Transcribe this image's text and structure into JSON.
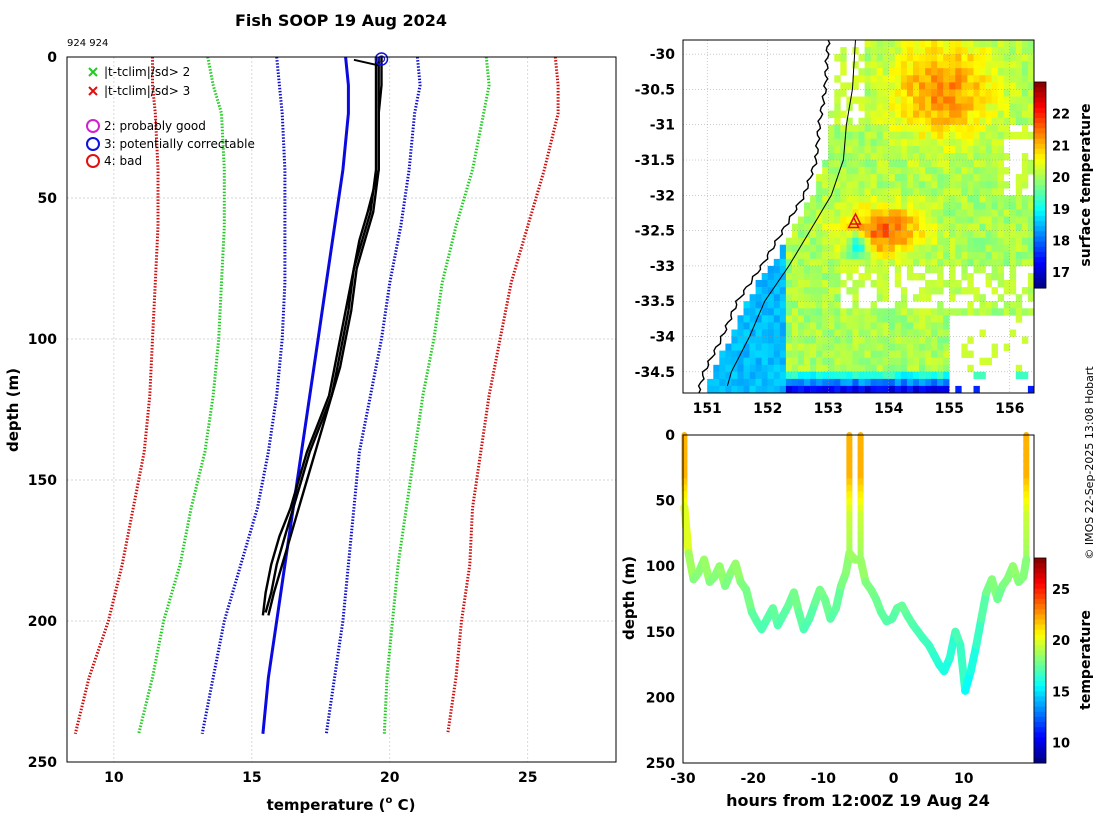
{
  "chart_data": [
    {
      "type": "line",
      "title": "Fish SOOP 19 Aug 2024",
      "id_label": "924 924",
      "xlabel": "temperature (",
      "xlabel_sup": "o",
      "xlabel_unit": " C)",
      "ylabel": "depth (m)",
      "xlim": [
        8.3,
        28.2
      ],
      "ylim": [
        250,
        0
      ],
      "xticks": [
        10,
        15,
        20,
        25
      ],
      "yticks": [
        0,
        50,
        100,
        150,
        200,
        250
      ],
      "legend": [
        {
          "marker": "x",
          "color": "#22cc22",
          "label": "|t-tclim|/sd> 2"
        },
        {
          "marker": "x",
          "color": "#e01010",
          "label": "|t-tclim|/sd> 3"
        },
        {
          "marker": "o",
          "color": "#d020d0",
          "label": "2: probably good"
        },
        {
          "marker": "o",
          "color": "#1010e0",
          "label": "3: potentially correctable"
        },
        {
          "marker": "o",
          "color": "#e01010",
          "label": "4: bad"
        }
      ],
      "series": [
        {
          "name": "clim -3sd",
          "style": "dotted",
          "color": "#d01010",
          "depth": [
            0,
            10,
            20,
            40,
            60,
            80,
            100,
            120,
            140,
            160,
            180,
            200,
            220,
            240
          ],
          "temp": [
            11.4,
            11.4,
            11.5,
            11.6,
            11.6,
            11.5,
            11.4,
            11.3,
            11.1,
            10.7,
            10.3,
            9.8,
            9.1,
            8.6
          ]
        },
        {
          "name": "clim -2sd",
          "style": "dotted",
          "color": "#22cc22",
          "depth": [
            0,
            10,
            20,
            40,
            60,
            80,
            100,
            120,
            140,
            160,
            180,
            200,
            220,
            240
          ],
          "temp": [
            13.4,
            13.6,
            13.9,
            14.0,
            14.0,
            13.9,
            13.8,
            13.6,
            13.3,
            12.8,
            12.4,
            11.8,
            11.4,
            10.9
          ]
        },
        {
          "name": "clim -1sd",
          "style": "dotted",
          "color": "#1010d0",
          "depth": [
            0,
            10,
            20,
            40,
            60,
            80,
            100,
            120,
            140,
            160,
            180,
            200,
            220,
            240
          ],
          "temp": [
            15.9,
            16.0,
            16.1,
            16.2,
            16.2,
            16.2,
            16.1,
            15.9,
            15.6,
            15.2,
            14.6,
            14.0,
            13.6,
            13.2
          ]
        },
        {
          "name": "climatology mean",
          "style": "solid",
          "color": "#0a0ae0",
          "depth": [
            0,
            10,
            20,
            40,
            60,
            80,
            100,
            120,
            140,
            160,
            180,
            200,
            220,
            240
          ],
          "temp": [
            18.4,
            18.5,
            18.5,
            18.3,
            18.0,
            17.7,
            17.4,
            17.1,
            16.8,
            16.5,
            16.2,
            15.9,
            15.6,
            15.4
          ]
        },
        {
          "name": "clim +1sd",
          "style": "dotted",
          "color": "#1010d0",
          "depth": [
            0,
            10,
            20,
            40,
            60,
            80,
            100,
            120,
            140,
            160,
            180,
            200,
            220,
            240
          ],
          "temp": [
            21.0,
            21.1,
            20.9,
            20.7,
            20.4,
            20.0,
            19.7,
            19.3,
            18.9,
            18.7,
            18.5,
            18.3,
            18.0,
            17.7
          ]
        },
        {
          "name": "clim +2sd",
          "style": "dotted",
          "color": "#22cc22",
          "depth": [
            0,
            10,
            20,
            40,
            60,
            80,
            100,
            120,
            140,
            160,
            180,
            200,
            220,
            240
          ],
          "temp": [
            23.5,
            23.6,
            23.4,
            23.0,
            22.4,
            21.9,
            21.6,
            21.2,
            20.9,
            20.6,
            20.3,
            20.1,
            19.9,
            19.8
          ]
        },
        {
          "name": "clim +3sd",
          "style": "dotted",
          "color": "#d01010",
          "depth": [
            0,
            10,
            20,
            40,
            60,
            80,
            100,
            120,
            140,
            160,
            180,
            200,
            220,
            240
          ],
          "temp": [
            26.0,
            26.1,
            26.1,
            25.6,
            25.0,
            24.4,
            24.0,
            23.6,
            23.3,
            23.0,
            22.9,
            22.6,
            22.4,
            22.1
          ]
        },
        {
          "name": "profile A",
          "style": "solid",
          "color": "#000000",
          "depth": [
            0,
            10,
            20,
            40,
            55,
            65,
            75,
            90,
            100,
            110,
            120,
            130,
            140,
            150,
            160,
            170,
            180,
            190,
            198
          ],
          "temp": [
            19.5,
            19.5,
            19.5,
            19.5,
            19.3,
            19.0,
            18.7,
            18.5,
            18.3,
            18.1,
            17.9,
            17.6,
            17.3,
            17.0,
            16.7,
            16.4,
            16.1,
            15.8,
            15.6
          ]
        },
        {
          "name": "profile B",
          "style": "solid",
          "color": "#000000",
          "depth": [
            0,
            10,
            20,
            40,
            55,
            65,
            75,
            90,
            100,
            110,
            120,
            130,
            140,
            150,
            160,
            170,
            180,
            190,
            197
          ],
          "temp": [
            19.6,
            19.6,
            19.6,
            19.6,
            19.4,
            19.1,
            18.8,
            18.6,
            18.4,
            18.2,
            17.9,
            17.5,
            17.1,
            16.8,
            16.5,
            16.2,
            15.9,
            15.7,
            15.5
          ]
        },
        {
          "name": "profile C",
          "style": "solid",
          "color": "#000000",
          "depth": [
            0,
            10,
            20,
            40,
            55,
            65,
            75,
            90,
            100,
            110,
            120,
            130,
            140,
            150,
            160,
            170,
            180,
            190,
            198
          ],
          "temp": [
            19.7,
            19.7,
            19.6,
            19.6,
            19.2,
            18.9,
            18.7,
            18.4,
            18.2,
            18.0,
            17.8,
            17.4,
            17.0,
            16.7,
            16.4,
            16.0,
            15.7,
            15.5,
            15.4
          ]
        }
      ],
      "flag_points": [
        {
          "depth": 0,
          "temp": 19.7,
          "flag": "3: potentially correctable"
        }
      ]
    },
    {
      "type": "heatmap",
      "title": "",
      "xlim": [
        150.6,
        156.4
      ],
      "ylim": [
        -34.8,
        -29.8
      ],
      "xticks": [
        151,
        152,
        153,
        154,
        155,
        156
      ],
      "yticks": [
        -30,
        -30.5,
        -31,
        -31.5,
        -32,
        -32.5,
        -33,
        -33.5,
        -34,
        -34.5
      ],
      "colorbar_label": "surface temperature",
      "colorbar_range": [
        16.5,
        23
      ],
      "colorbar_ticks": [
        17,
        18,
        19,
        20,
        21,
        22
      ],
      "grid": "30x36 cells over lon 151.8-156.0, lat -34.8 to -29.8",
      "sst_rows_north_to_south": [
        "zzzzzzzzzzzzzzzzzzzzzzzzzzzzzzzzzzzzzzzzzzzzzzzzzz",
        "zzzzzzzzzzzzzzzzzzzzzzzzzzzzzzzzzzzzzzzzzzzzzzzzzz",
        "zzzzzzzzzzzzzzzzzzzzzzzzzzzzzzzzzzzzzzzzzzzzzzzzzz"
      ],
      "sst_fields": {
        "base": 20.0,
        "warm_core": {
          "lon": 153.9,
          "lat": -32.5,
          "value": 21.6
        },
        "warm_north": {
          "lon": 154.9,
          "lat": -30.5,
          "value": 21.3
        },
        "cool_eddy": {
          "lon": 153.5,
          "lat": -32.7,
          "value": 18.2
        },
        "cold_south": {
          "lon": 154.0,
          "lat": -34.8,
          "value": 16.8
        }
      },
      "track_points": [
        {
          "lon": 153.45,
          "lat": -32.35
        },
        {
          "lon": 153.42,
          "lat": -32.4
        }
      ]
    },
    {
      "type": "heatmap",
      "title": "",
      "xlabel": "hours from 12:00Z 19 Aug 24",
      "ylabel": "depth (m)",
      "xlim": [
        -30,
        20
      ],
      "ylim": [
        250,
        0
      ],
      "xticks": [
        -30,
        -20,
        -10,
        0,
        10
      ],
      "yticks": [
        0,
        50,
        100,
        150,
        200,
        250
      ],
      "colorbar_label": "temperature",
      "colorbar_range": [
        8,
        28
      ],
      "colorbar_ticks": [
        10,
        15,
        20,
        25
      ],
      "drops": [
        {
          "hour": -29.8,
          "bottom": 55
        },
        {
          "hour": -6.3,
          "bottom": 90
        },
        {
          "hour": -4.7,
          "bottom": 95
        },
        {
          "hour": 18.9,
          "bottom": 95
        }
      ],
      "section_bottom": {
        "hours": [
          -29.8,
          -29.2,
          -28.5,
          -27.8,
          -27.0,
          -26.2,
          -25.5,
          -24.8,
          -24.0,
          -23.2,
          -22.5,
          -21.8,
          -21.0,
          -20.2,
          -19.5,
          -18.8,
          -18.0,
          -17.2,
          -16.5,
          -15.8,
          -15.0,
          -14.2,
          -13.5,
          -12.8,
          -12.0,
          -11.2,
          -10.5,
          -9.8,
          -9.0,
          -8.2,
          -7.5,
          -6.8,
          -6.3,
          -5.5,
          -4.7,
          -4.0,
          -3.2,
          -2.5,
          -1.8,
          -1.0,
          -0.2,
          0.5,
          1.2,
          2.0,
          2.8,
          3.5,
          4.2,
          5.0,
          5.8,
          6.5,
          7.2,
          8.0,
          8.8,
          9.5,
          10.2,
          11.0,
          11.8,
          12.5,
          13.2,
          14.0,
          14.8,
          15.5,
          16.2,
          17.0,
          17.8,
          18.5,
          18.9
        ],
        "depth": [
          55,
          90,
          110,
          105,
          95,
          112,
          108,
          100,
          115,
          105,
          98,
          112,
          118,
          135,
          142,
          148,
          140,
          132,
          145,
          138,
          130,
          120,
          135,
          148,
          140,
          128,
          118,
          125,
          140,
          132,
          115,
          105,
          90,
          95,
          95,
          112,
          118,
          125,
          135,
          142,
          140,
          132,
          130,
          138,
          145,
          150,
          155,
          160,
          168,
          175,
          180,
          170,
          150,
          160,
          195,
          180,
          160,
          140,
          120,
          110,
          125,
          115,
          110,
          100,
          112,
          108,
          95
        ]
      }
    }
  ],
  "watermark": "© IMOS 22-Sep-2025 13:08 Hobart",
  "colors": {
    "axis": "#000000",
    "grid": "#c8c8c8",
    "land": "#ffffff"
  }
}
